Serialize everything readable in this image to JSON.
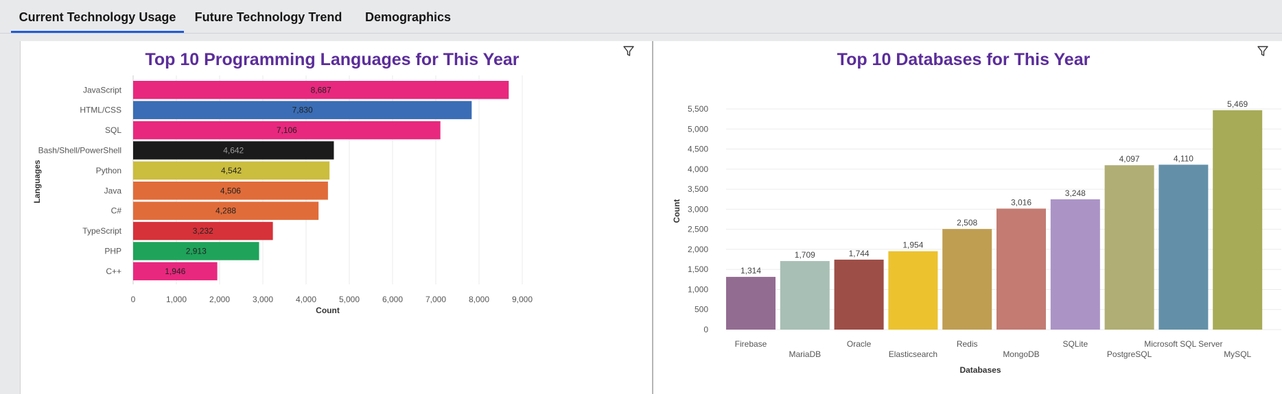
{
  "tabs": [
    {
      "label": "Current Technology Usage",
      "active": true
    },
    {
      "label": "Future Technology Trend",
      "active": false
    },
    {
      "label": "Demographics",
      "active": false
    }
  ],
  "icons": {
    "filter": "filter-icon"
  },
  "colors": {
    "title": "#5b2d9a",
    "active_tab": "#1f5bd8"
  },
  "left_panel": {
    "title": "Top 10 Programming Languages for This Year"
  },
  "right_panel": {
    "title": "Top 10 Databases for This Year"
  },
  "chart_data": [
    {
      "type": "bar",
      "orientation": "horizontal",
      "title": "Top 10 Programming Languages for This Year",
      "xlabel": "Count",
      "ylabel": "Languages",
      "xlim": [
        0,
        9000
      ],
      "ticks": [
        "0",
        "1,000",
        "2,000",
        "3,000",
        "4,000",
        "5,000",
        "6,000",
        "7,000",
        "8,000",
        "9,000"
      ],
      "grid": true,
      "categories": [
        "JavaScript",
        "HTML/CSS",
        "SQL",
        "Bash/Shell/PowerShell",
        "Python",
        "Java",
        "C#",
        "TypeScript",
        "PHP",
        "C++"
      ],
      "values": [
        8687,
        7830,
        7106,
        4642,
        4542,
        4506,
        4288,
        3232,
        2913,
        1946
      ],
      "value_labels": [
        "8,687",
        "7,830",
        "7,106",
        "4,642",
        "4,542",
        "4,506",
        "4,288",
        "3,232",
        "2,913",
        "1,946"
      ],
      "colors": [
        "#e8287e",
        "#3a6db5",
        "#e8287e",
        "#1b1b1b",
        "#cbbd3e",
        "#e06c3a",
        "#e06c3a",
        "#d63239",
        "#1fa35a",
        "#e8287e"
      ]
    },
    {
      "type": "bar",
      "orientation": "vertical",
      "title": "Top 10 Databases for This Year",
      "xlabel": "Databases",
      "ylabel": "Count",
      "ylim": [
        0,
        5500
      ],
      "ticks": [
        "0",
        "500",
        "1,000",
        "1,500",
        "2,000",
        "2,500",
        "3,000",
        "3,500",
        "4,000",
        "4,500",
        "5,000",
        "5,500"
      ],
      "grid": true,
      "categories": [
        "Firebase",
        "MariaDB",
        "Oracle",
        "Elasticsearch",
        "Redis",
        "MongoDB",
        "SQLite",
        "PostgreSQL",
        "Microsoft SQL Server",
        "MySQL"
      ],
      "values": [
        1314,
        1709,
        1744,
        1954,
        2508,
        3016,
        3248,
        4097,
        4110,
        5469
      ],
      "value_labels": [
        "1,314",
        "1,709",
        "1,744",
        "1,954",
        "2,508",
        "3,016",
        "3,248",
        "4,097",
        "4,110",
        "5,469"
      ],
      "colors": [
        "#936c92",
        "#a8bfb5",
        "#9d4e47",
        "#ecc22e",
        "#bf9e52",
        "#c37b72",
        "#ab93c6",
        "#b0ae74",
        "#6390a8",
        "#a7ab57"
      ]
    }
  ]
}
